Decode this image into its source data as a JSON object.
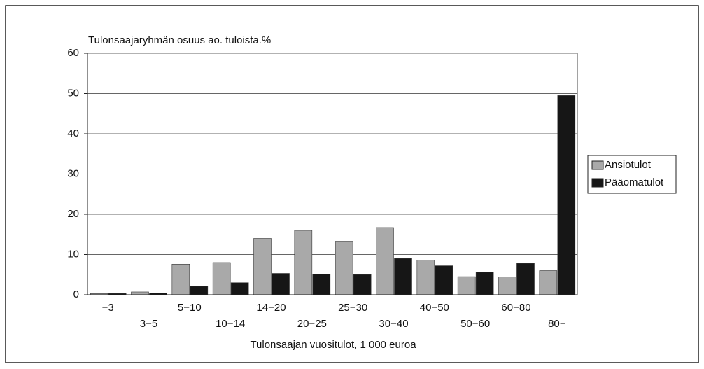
{
  "chart_data": {
    "type": "bar",
    "title": "Tulonsaajaryhmän osuus ao. tuloista.%",
    "x_label": "Tulonsaajan vuositulot, 1 000 euroa",
    "categories": [
      "−3",
      "3−5",
      "5−10",
      "10−14",
      "14−20",
      "20−25",
      "25−30",
      "30−40",
      "40−50",
      "50−60",
      "60−80",
      "80−"
    ],
    "series": [
      {
        "name": "Ansiotulot",
        "color": "#a9a9a9",
        "values": [
          0.3,
          0.7,
          7.6,
          8.0,
          14.0,
          16.0,
          13.3,
          16.7,
          8.6,
          4.5,
          4.4,
          6.0
        ]
      },
      {
        "name": "Pääomatulot",
        "color": "#161616",
        "values": [
          0.3,
          0.4,
          2.1,
          3.0,
          5.3,
          5.1,
          5.0,
          9.0,
          7.2,
          5.6,
          7.8,
          49.5
        ]
      }
    ],
    "ylim": [
      0,
      60
    ],
    "yticks": [
      0,
      10,
      20,
      30,
      40,
      50,
      60
    ],
    "grid": true,
    "legend": "right"
  }
}
